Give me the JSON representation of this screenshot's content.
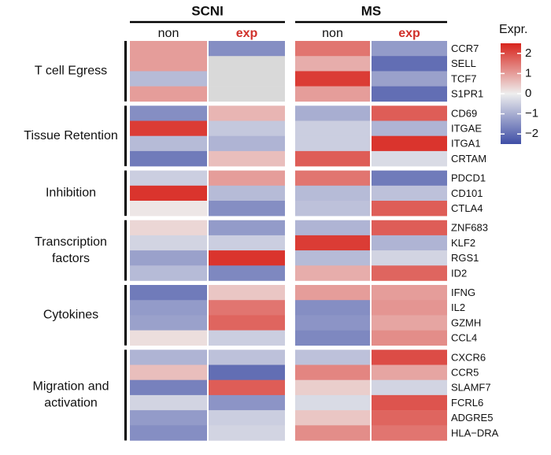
{
  "chart_data": {
    "type": "heatmap",
    "column_groups": [
      "SCNI",
      "MS"
    ],
    "columns": [
      "non",
      "exp",
      "non",
      "exp"
    ],
    "groups": [
      {
        "label": [
          "T cell Egress"
        ],
        "rows": [
          "CCR7",
          "SELL",
          "TCF7",
          "S1PR1"
        ],
        "values": [
          [
            1.0,
            -1.5,
            1.5,
            -1.3
          ],
          [
            1.0,
            null,
            0.8,
            -2.0
          ],
          [
            -0.8,
            null,
            2.2,
            -1.2
          ],
          [
            1.0,
            null,
            1.0,
            -2.0
          ]
        ]
      },
      {
        "label": [
          "Tissue Retention"
        ],
        "rows": [
          "CD69",
          "ITGAE",
          "ITGA1",
          "CRTAM"
        ],
        "values": [
          [
            -1.5,
            0.7,
            -1.0,
            1.8
          ],
          [
            2.2,
            -0.6,
            -0.5,
            -0.9
          ],
          [
            -0.8,
            -0.9,
            -0.5,
            2.3
          ],
          [
            -1.8,
            0.6,
            1.8,
            -0.3
          ]
        ]
      },
      {
        "label": [
          "Inhibition"
        ],
        "rows": [
          "PDCD1",
          "CD101",
          "CTLA4"
        ],
        "values": [
          [
            -0.5,
            1.0,
            1.5,
            -1.8
          ],
          [
            2.3,
            -0.8,
            -0.8,
            -0.7
          ],
          [
            0.1,
            -1.5,
            -0.7,
            1.8
          ]
        ]
      },
      {
        "label": [
          "Transcription",
          "factors"
        ],
        "rows": [
          "ZNF683",
          "KLF2",
          "RGS1",
          "ID2"
        ],
        "values": [
          [
            0.3,
            -1.3,
            -0.9,
            1.8
          ],
          [
            -0.4,
            -0.5,
            2.2,
            -0.9
          ],
          [
            -1.2,
            2.3,
            -0.8,
            -0.4
          ],
          [
            -0.8,
            -1.6,
            0.8,
            1.7
          ]
        ]
      },
      {
        "label": [
          "Cytokines"
        ],
        "rows": [
          "IFNG",
          "IL2",
          "GZMH",
          "CCL4"
        ],
        "values": [
          [
            -1.8,
            0.5,
            1.0,
            1.0
          ],
          [
            -1.3,
            1.5,
            -1.5,
            1.1
          ],
          [
            -1.2,
            1.7,
            -1.4,
            0.9
          ],
          [
            0.2,
            -0.5,
            -1.6,
            1.2
          ]
        ]
      },
      {
        "label": [
          "Migration and",
          "activation"
        ],
        "rows": [
          "CXCR6",
          "CCR5",
          "SLAMF7",
          "FCRL6",
          "ADGRE5",
          "HLA−DRA"
        ],
        "values": [
          [
            -0.9,
            -0.7,
            -0.7,
            2.0
          ],
          [
            0.6,
            -2.0,
            1.3,
            0.9
          ],
          [
            -1.7,
            1.8,
            0.4,
            -0.4
          ],
          [
            -0.4,
            -1.4,
            -0.3,
            1.9
          ],
          [
            -1.3,
            -0.5,
            0.5,
            1.7
          ],
          [
            -1.5,
            -0.4,
            1.2,
            1.5
          ]
        ]
      }
    ],
    "colorbar_title": "Expr.",
    "zlim": [
      -2.5,
      2.5
    ],
    "zticks": [
      2,
      1,
      0,
      {
        "value": -1,
        "label": "−1"
      },
      {
        "value": -2,
        "label": "−2"
      }
    ],
    "colors": {
      "low": "#3f4ea6",
      "mid": "#eeeeee",
      "high": "#d8241c",
      "missing": "#d9d9d9",
      "highlight": "#d0302a"
    }
  }
}
